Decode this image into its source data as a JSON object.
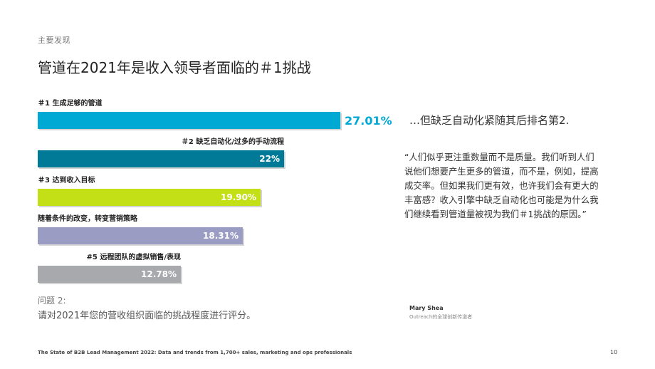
{
  "eyebrow": "主要发现",
  "title": "管道在2021年是收入领导者面临的＃1挑战",
  "chart_data": {
    "type": "bar",
    "orientation": "horizontal",
    "xlim": [
      0,
      30
    ],
    "categories": [
      "＃1 生成足够的管道",
      "＃2 缺乏自动化/过多的手动流程",
      "＃3 达到收入目标",
      "随着条件的改变，转变营销策略",
      "#5 远程团队的虚拟销售/表现"
    ],
    "values": [
      27.01,
      22,
      19.9,
      18.31,
      12.78
    ],
    "value_labels": [
      "27.01%",
      "22%",
      "19.90%",
      "18.31%",
      "12.78%"
    ],
    "colors": [
      "#00a9d4",
      "#007a96",
      "#c3e016",
      "#9a9cc4",
      "#a8a9ac"
    ],
    "label_align": [
      "left",
      "right",
      "left",
      "left",
      "right"
    ],
    "highlight_color": "#00a9d4"
  },
  "question": {
    "number": "问题 2:",
    "text": "请对2021年您的营收组织面临的挑战程度进行评分。"
  },
  "subheading": "…但缺乏自动化紧随其后排名第2.",
  "quote": "“人们似乎更注重数量而不是质量。我们听到人们说他们想要产生更多的管道，而不是，例如，提高成交率。但如果我们更有效，也许我们会有更大的丰富感？收入引擎中缺乏自动化也可能是为什么我们继续看到管道量被视为我们＃1挑战的原因。”",
  "author": {
    "name": "Mary Shea",
    "role": "Outreach的全球创新传道者"
  },
  "footer": "The State of B2B Lead Management 2022: Data and trends from 1,700+ sales, marketing and ops professionals",
  "page_number": "10"
}
